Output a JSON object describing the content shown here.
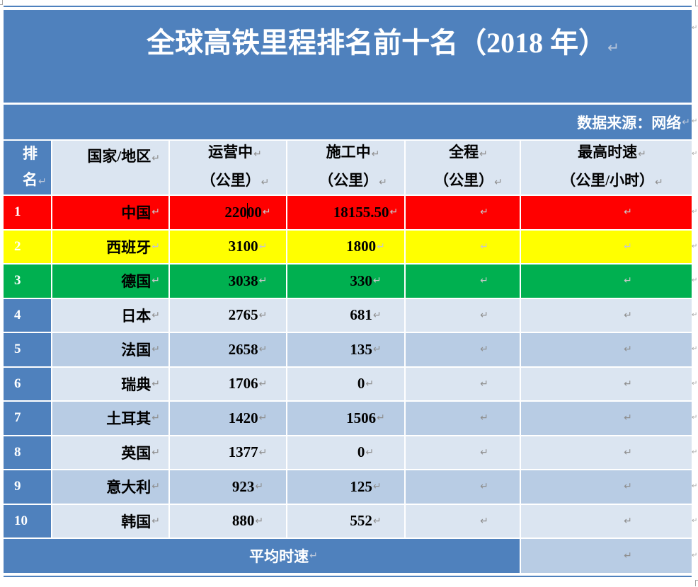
{
  "para_mark": "↵",
  "title": "全球高铁里程排名前十名（2018 年）",
  "source": "数据来源：网络",
  "colors": {
    "header_blue": "#4F81BD",
    "band_light": "#DBE5F1",
    "band_medium": "#B8CCE4",
    "rank_1_red": "#FF0000",
    "rank_2_yellow": "#FFFF00",
    "rank_3_green": "#00B050"
  },
  "table": {
    "header": {
      "rank": [
        "排",
        "名"
      ],
      "country": "国家/地区",
      "operating": [
        "运营中",
        "（公里）"
      ],
      "under_construction": [
        "施工中",
        "（公里）"
      ],
      "total": [
        "全程",
        "（公里）"
      ],
      "max_speed": [
        "最高时速",
        "（公里/小时）"
      ]
    },
    "rows": [
      {
        "rank": "1",
        "country": "中国",
        "operating": "22000",
        "under_construction": "18155.50",
        "fill": "#FF0000"
      },
      {
        "rank": "2",
        "country": "西班牙",
        "operating": "3100",
        "under_construction": "1800",
        "fill": "#FFFF00"
      },
      {
        "rank": "3",
        "country": "德国",
        "operating": "3038",
        "under_construction": "330",
        "fill": "#00B050"
      },
      {
        "rank": "4",
        "country": "日本",
        "operating": "2765",
        "under_construction": "681",
        "fill": "#DBE5F1"
      },
      {
        "rank": "5",
        "country": "法国",
        "operating": "2658",
        "under_construction": "135",
        "fill": "#B8CCE4"
      },
      {
        "rank": "6",
        "country": "瑞典",
        "operating": "1706",
        "under_construction": "0",
        "fill": "#DBE5F1"
      },
      {
        "rank": "7",
        "country": "土耳其",
        "operating": "1420",
        "under_construction": "1506",
        "fill": "#B8CCE4"
      },
      {
        "rank": "8",
        "country": "英国",
        "operating": "1377",
        "under_construction": "0",
        "fill": "#DBE5F1"
      },
      {
        "rank": "9",
        "country": "意大利",
        "operating": "923",
        "under_construction": "125",
        "fill": "#B8CCE4"
      },
      {
        "rank": "10",
        "country": "韩国",
        "operating": "880",
        "under_construction": "552",
        "fill": "#DBE5F1"
      }
    ],
    "footer": {
      "label": "平均时速"
    }
  }
}
